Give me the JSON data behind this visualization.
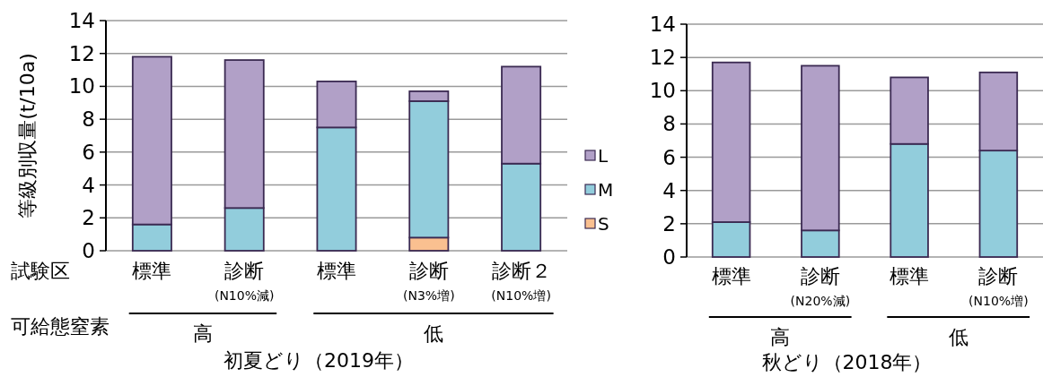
{
  "chart_data": [
    {
      "type": "bar",
      "stacked": true,
      "title": "初夏どり（2019年）",
      "ylabel": "等級別収量(t/10a)",
      "categories": [
        "標準",
        "診断\n(N10%減)",
        "標準",
        "診断\n(N3%増)",
        "診断２\n(N10%増)"
      ],
      "series": [
        {
          "name": "S",
          "color": "#fac090",
          "values": [
            0,
            0,
            0,
            0.8,
            0
          ]
        },
        {
          "name": "M",
          "color": "#92cddc",
          "values": [
            1.6,
            2.6,
            7.5,
            8.3,
            5.3
          ]
        },
        {
          "name": "L",
          "color": "#b1a0c7",
          "values": [
            10.2,
            9.0,
            2.8,
            0.6,
            5.9
          ]
        }
      ],
      "ylim": [
        0,
        14
      ],
      "yticks": [
        0,
        2,
        4,
        6,
        8,
        10,
        12,
        14
      ],
      "grid": "y",
      "legend": "right",
      "annotations": [
        "試験区",
        "可給態窒素",
        "高",
        "低"
      ]
    },
    {
      "type": "bar",
      "stacked": true,
      "title": "秋どり（2018年）",
      "categories": [
        "標準",
        "診断\n(N20%減)",
        "標準",
        "診断\n(N10%増)"
      ],
      "series": [
        {
          "color": "#92cddc",
          "values": [
            2.1,
            1.6,
            6.8,
            6.4
          ]
        },
        {
          "color": "#b1a0c7",
          "values": [
            9.6,
            9.9,
            4.0,
            4.7
          ]
        }
      ],
      "ylim": [
        0,
        14
      ],
      "yticks": [
        0,
        2,
        4,
        6,
        8,
        10,
        12,
        14
      ],
      "grid": "y",
      "annotations": [
        "高",
        "低"
      ]
    }
  ]
}
